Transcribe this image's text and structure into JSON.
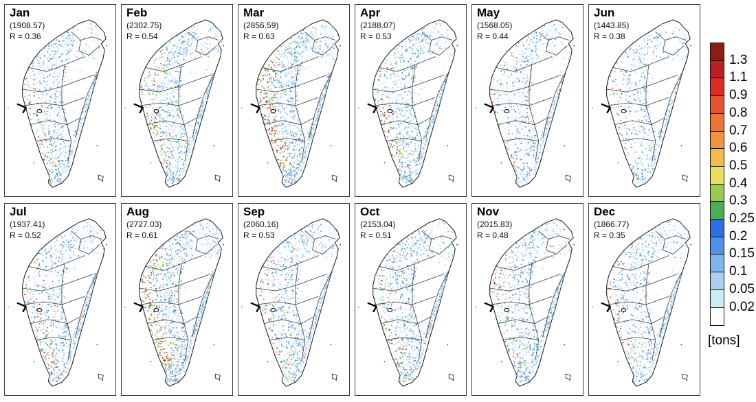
{
  "months": [
    {
      "label": "Jan",
      "total": "(1908.57)",
      "r": "R = 0.36"
    },
    {
      "label": "Feb",
      "total": "(2302.75)",
      "r": "R = 0.54"
    },
    {
      "label": "Mar",
      "total": "(2856.59)",
      "r": "R = 0.63"
    },
    {
      "label": "Apr",
      "total": "(2188.07)",
      "r": "R = 0.53"
    },
    {
      "label": "May",
      "total": "(1568.05)",
      "r": "R = 0.44"
    },
    {
      "label": "Jun",
      "total": "(1443.85)",
      "r": "R = 0.38"
    },
    {
      "label": "Jul",
      "total": "(1937.41)",
      "r": "R = 0.52"
    },
    {
      "label": "Aug",
      "total": "(2727.03)",
      "r": "R = 0.61"
    },
    {
      "label": "Sep",
      "total": "(2060.16)",
      "r": "R = 0.53"
    },
    {
      "label": "Oct",
      "total": "(2153.04)",
      "r": "R = 0.51"
    },
    {
      "label": "Nov",
      "total": "(2015.83)",
      "r": "R = 0.48"
    },
    {
      "label": "Dec",
      "total": "(1866.77)",
      "r": "R = 0.35"
    }
  ],
  "colorbar": {
    "units": "[tons]",
    "tick_labels": [
      "1.3",
      "1.1",
      "0.9",
      "0.8",
      "0.7",
      "0.6",
      "0.5",
      "0.4",
      "0.3",
      "0.25",
      "0.2",
      "0.15",
      "0.1",
      "0.05",
      "0.02"
    ],
    "cell_colors_top_to_bottom": [
      "#8e1c13",
      "#bb2025",
      "#e02a23",
      "#e8552d",
      "#ee7433",
      "#f2943e",
      "#f4bb4b",
      "#ece05a",
      "#9aca4f",
      "#4dad57",
      "#2a70e2",
      "#4f93e8",
      "#7fb4ec",
      "#a9d0f1",
      "#cdebf5",
      "#ffffff"
    ]
  },
  "chart_data": {
    "type": "heatmap",
    "categories": [
      "Jan",
      "Feb",
      "Mar",
      "Apr",
      "May",
      "Jun",
      "Jul",
      "Aug",
      "Sep",
      "Oct",
      "Nov",
      "Dec"
    ],
    "series": [
      {
        "name": "monthly_total_tons",
        "values": [
          1908.57,
          2302.75,
          2856.59,
          2188.07,
          1568.05,
          1443.85,
          1937.41,
          2727.03,
          2060.16,
          2153.04,
          2015.83,
          1866.77
        ]
      },
      {
        "name": "spatial_correlation_R",
        "values": [
          0.36,
          0.54,
          0.63,
          0.53,
          0.44,
          0.38,
          0.52,
          0.61,
          0.53,
          0.51,
          0.48,
          0.35
        ]
      }
    ],
    "colorbar_levels_tons": [
      0.02,
      0.05,
      0.1,
      0.15,
      0.2,
      0.25,
      0.3,
      0.4,
      0.5,
      0.6,
      0.7,
      0.8,
      0.9,
      1.1,
      1.3
    ],
    "colorbar_units": "[tons]",
    "legend_position": "right",
    "layout": "2 rows x 6 columns of Taiwan emission maps"
  }
}
